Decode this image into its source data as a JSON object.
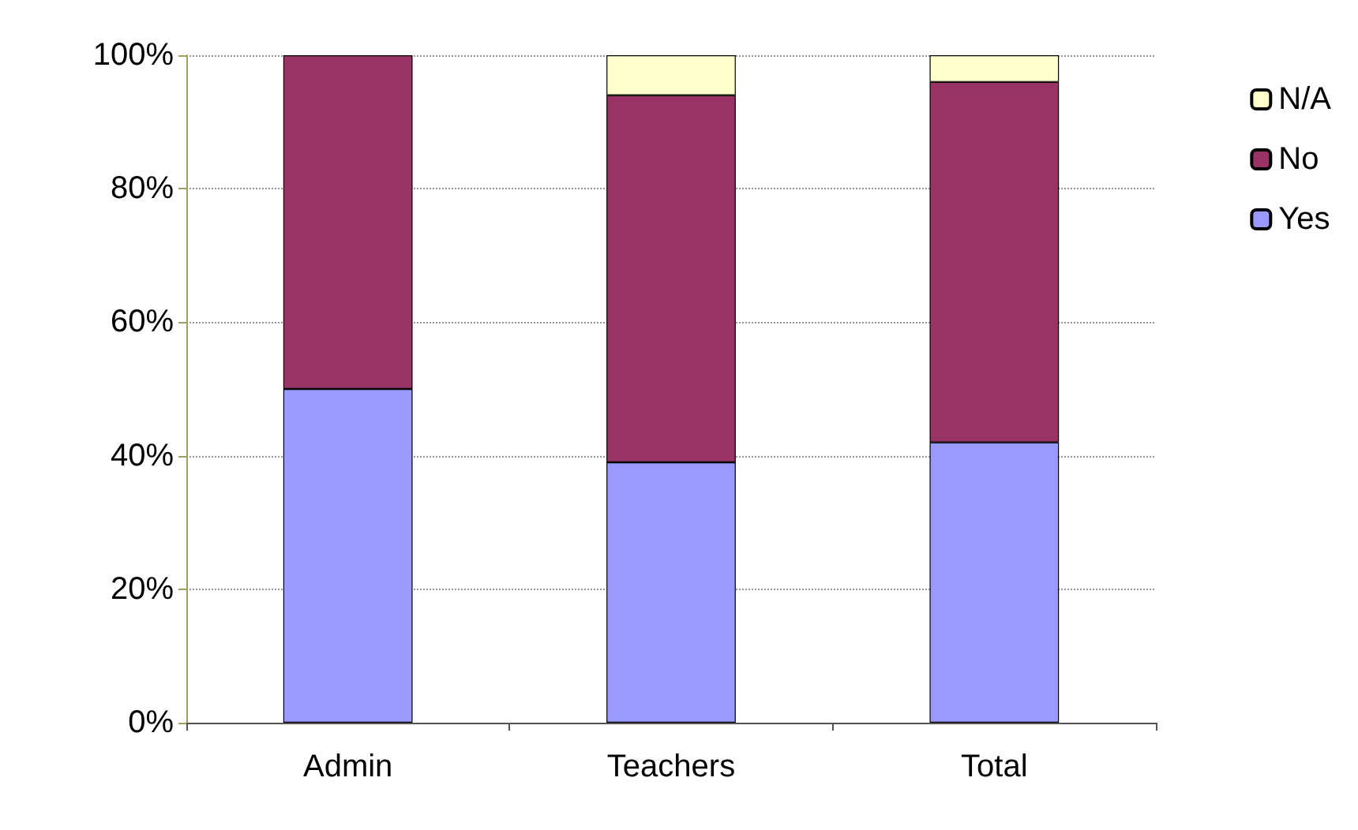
{
  "chart_data": {
    "type": "bar",
    "stacked": true,
    "categories": [
      "Admin",
      "Teachers",
      "Total"
    ],
    "series": [
      {
        "name": "Yes",
        "color": "#9999ff",
        "values": [
          50,
          39,
          42
        ]
      },
      {
        "name": "No",
        "color": "#993366",
        "values": [
          50,
          55,
          54
        ]
      },
      {
        "name": "N/A",
        "color": "#ffffcc",
        "values": [
          0,
          6,
          4
        ]
      }
    ],
    "ylim": [
      0,
      100
    ],
    "yticks": [
      {
        "value": 0,
        "label": "0%"
      },
      {
        "value": 20,
        "label": "20%"
      },
      {
        "value": 40,
        "label": "40%"
      },
      {
        "value": 60,
        "label": "60%"
      },
      {
        "value": 80,
        "label": "80%"
      },
      {
        "value": 100,
        "label": "100%"
      }
    ],
    "grid": "y",
    "legend": "right",
    "line_style": "dotted"
  }
}
